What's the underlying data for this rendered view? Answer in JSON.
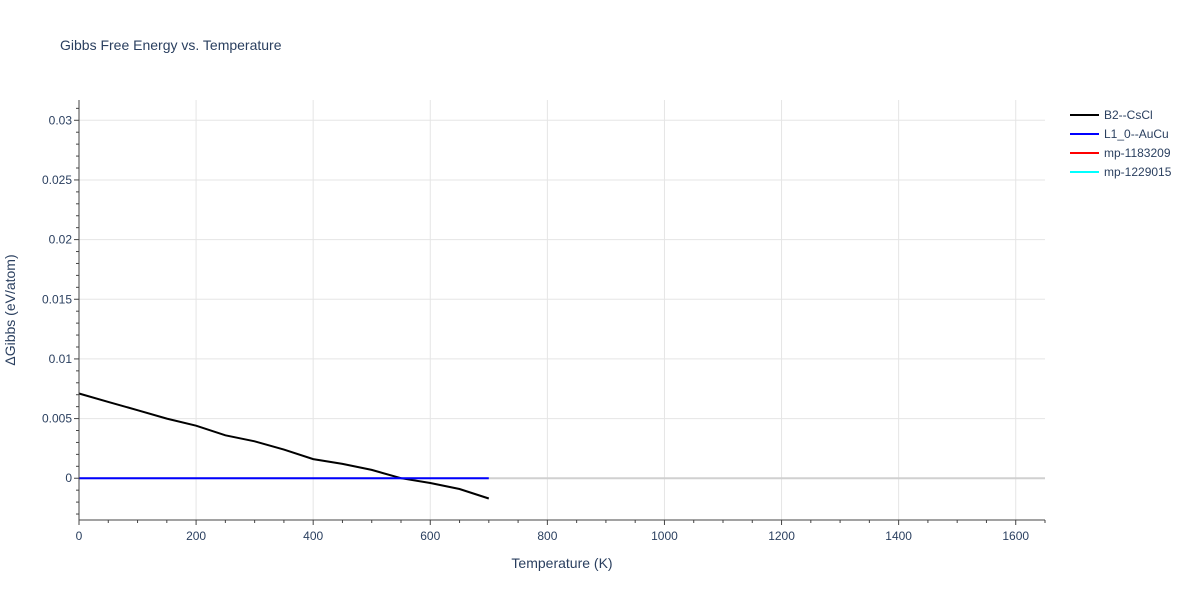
{
  "chart_data": {
    "type": "line",
    "title": "Gibbs Free Energy vs. Temperature",
    "xlabel": "Temperature (K)",
    "ylabel": "ΔGibbs (eV/atom)",
    "xlim": [
      0,
      1650
    ],
    "ylim": [
      -0.0035,
      0.0317
    ],
    "x_ticks": [
      0,
      200,
      400,
      600,
      800,
      1000,
      1200,
      1400,
      1600
    ],
    "x_tick_labels": [
      "0",
      "200",
      "400",
      "600",
      "800",
      "1000",
      "1200",
      "1400",
      "1600"
    ],
    "y_ticks": [
      0,
      0.005,
      0.01,
      0.015,
      0.02,
      0.025,
      0.03
    ],
    "y_tick_labels": [
      "0",
      "0.005",
      "0.01",
      "0.015",
      "0.02",
      "0.025",
      "0.03"
    ],
    "grid": true,
    "legend_position": "top-right outside",
    "series": [
      {
        "name": "B2--CsCl",
        "color": "#000000",
        "x": [
          0,
          50,
          100,
          150,
          200,
          250,
          300,
          350,
          400,
          450,
          500,
          550,
          600,
          650,
          700
        ],
        "y": [
          0.0071,
          0.0064,
          0.0057,
          0.005,
          0.0044,
          0.0036,
          0.0031,
          0.0024,
          0.0016,
          0.0012,
          0.0007,
          0.0,
          -0.0004,
          -0.0009,
          -0.0017
        ]
      },
      {
        "name": "L1_0--AuCu",
        "color": "#0000ff",
        "x": [
          0,
          100,
          200,
          300,
          400,
          500,
          600,
          700
        ],
        "y": [
          0,
          0,
          0,
          0,
          0,
          0,
          0,
          0
        ]
      },
      {
        "name": "mp-1183209",
        "color": "#ff0000",
        "x": [],
        "y": []
      },
      {
        "name": "mp-1229015",
        "color": "#00ffff",
        "x": [],
        "y": []
      }
    ]
  }
}
